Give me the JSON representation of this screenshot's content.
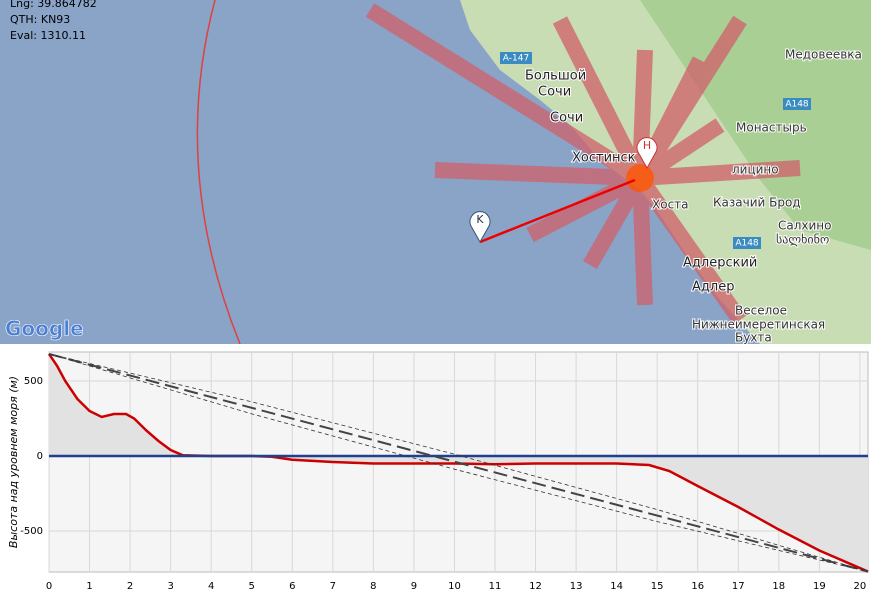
{
  "map": {
    "info": [
      "Lng: 39.864782",
      "QTH: KN93",
      "Eval: 1310.11"
    ],
    "labels": [
      "A-147",
      "Большой",
      "Сочи",
      "Сочи",
      "Хостинск",
      "Хоста",
      "Медовеевка",
      "A148",
      "Монастырь",
      "лицино",
      "Казачий Брод",
      "Салхино",
      "სალხინო",
      "A148",
      "Адлерский",
      "Адлер",
      "Веселое",
      "Нижнеимеретинская",
      "Бухта"
    ],
    "markers": [
      "H",
      "K"
    ],
    "logo": "Google"
  },
  "chart_data": {
    "type": "line",
    "ylabel": "Высота над уровнем моря (м)",
    "xlim": [
      0,
      20.2
    ],
    "ylim": [
      -773,
      693
    ],
    "xticks": [
      0,
      1,
      2,
      3,
      4,
      5,
      6,
      7,
      8,
      9,
      10,
      11,
      12,
      13,
      14,
      15,
      16,
      17,
      18,
      19,
      20
    ],
    "yticks": [
      -500,
      0,
      500
    ],
    "grid": true,
    "series": [
      {
        "x": [
          0,
          0.2,
          0.4,
          0.7,
          1.0,
          1.3,
          1.6,
          1.9,
          2.1,
          2.4,
          2.7,
          3.0,
          3.3,
          4,
          5,
          5.5,
          6,
          7,
          8,
          9,
          10,
          11,
          12,
          13,
          14,
          14.8,
          15.3,
          16,
          17,
          18,
          19,
          20.2
        ],
        "values": [
          680,
          600,
          500,
          380,
          300,
          260,
          280,
          280,
          250,
          170,
          100,
          40,
          5,
          0,
          0,
          -5,
          -25,
          -40,
          -50,
          -50,
          -50,
          -55,
          -50,
          -50,
          -50,
          -60,
          -100,
          -200,
          -340,
          -490,
          -630,
          -770
        ],
        "color": "#cc0000",
        "fill": "#e2e2e2",
        "style": "solid"
      },
      {
        "x": [
          0,
          20.2
        ],
        "values": [
          0,
          0
        ],
        "color": "#1f3f8f",
        "style": "solid"
      },
      {
        "x": [
          0,
          20.2
        ],
        "values": [
          680,
          -770
        ],
        "color": "#444444",
        "style": "dashed"
      },
      {
        "x": [
          0,
          5,
          10,
          15,
          20.2
        ],
        "values": [
          680,
          361,
          12,
          -357,
          -770
        ],
        "color": "#333333",
        "style": "thin-dashed"
      },
      {
        "x": [
          0,
          5,
          10,
          15,
          20.2
        ],
        "values": [
          680,
          281,
          -88,
          -437,
          -770
        ],
        "color": "#333333",
        "style": "thin-dashed"
      }
    ]
  }
}
